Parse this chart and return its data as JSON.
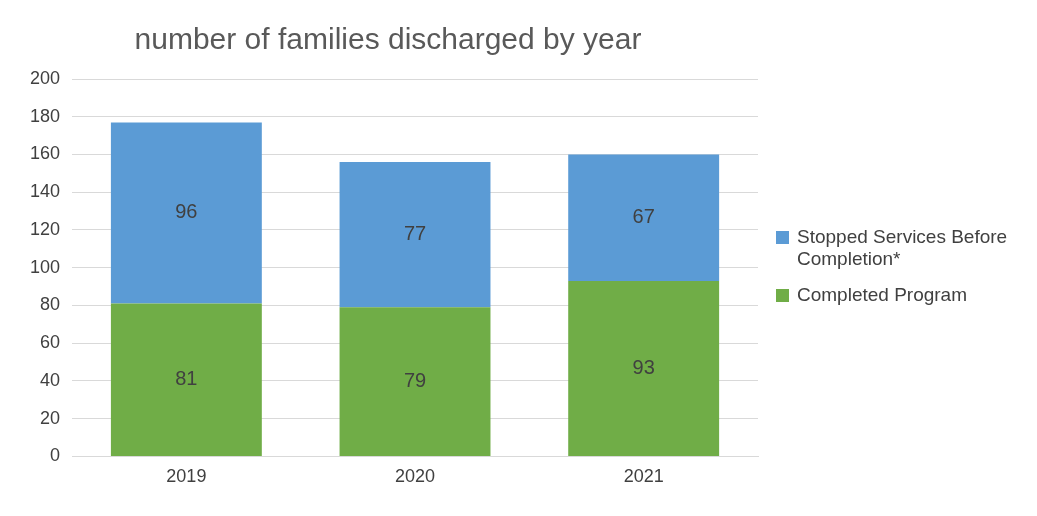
{
  "chart_data": {
    "type": "bar",
    "title": "number of families discharged by year",
    "categories": [
      "2019",
      "2020",
      "2021"
    ],
    "stacked": true,
    "series": [
      {
        "name": "Completed Program",
        "color": "#70ad47",
        "values": [
          81,
          79,
          93
        ]
      },
      {
        "name": "Stopped Services Before Completion*",
        "color": "#5b9bd5",
        "values": [
          96,
          77,
          67
        ]
      }
    ],
    "ylim": [
      0,
      200
    ],
    "yticks": [
      0,
      20,
      40,
      60,
      80,
      100,
      120,
      140,
      160,
      180,
      200
    ],
    "grid": "y",
    "legend": "right",
    "data_labels": true
  }
}
